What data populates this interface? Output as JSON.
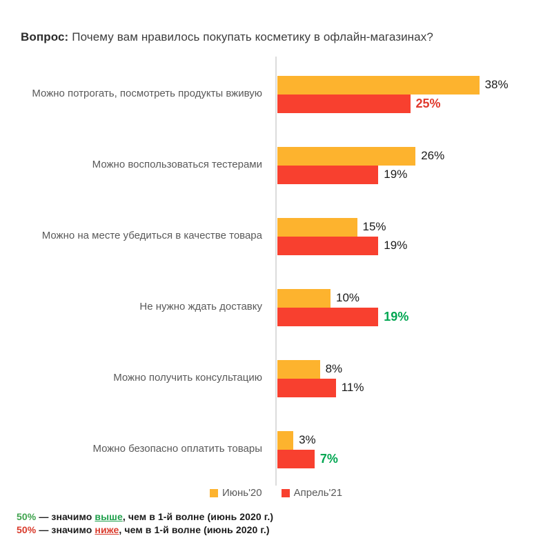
{
  "title": {
    "prefix": "Вопрос:",
    "text": "Почему вам нравилось покупать косметику в офлайн-магазинах?"
  },
  "chart_data": {
    "type": "bar",
    "orientation": "horizontal",
    "title": "Почему вам нравилось покупать косметику в офлайн-магазинах?",
    "xlabel": "",
    "ylabel": "",
    "xlim": [
      0,
      40
    ],
    "grid": false,
    "legend_position": "bottom-center",
    "categories": [
      "Можно потрогать, посмотреть продукты вживую",
      "Можно воспользоваться тестерами",
      "Можно на месте убедиться в качестве товара",
      "Не нужно ждать доставку",
      "Можно получить консультацию",
      "Можно безопасно оплатить товары"
    ],
    "series": [
      {
        "name": "Июнь'20",
        "color": "#fdb32e",
        "values": [
          38,
          26,
          15,
          10,
          8,
          3
        ]
      },
      {
        "name": "Апрель'21",
        "color": "#f8402f",
        "values": [
          25,
          19,
          19,
          19,
          11,
          7
        ]
      }
    ],
    "rows": [
      {
        "category": "Можно потрогать, посмотреть продукты вживую",
        "values": [
          {
            "pct": 38,
            "label": "38%",
            "sig": "none"
          },
          {
            "pct": 25,
            "label": "25%",
            "sig": "lower"
          }
        ]
      },
      {
        "category": "Можно воспользоваться тестерами",
        "values": [
          {
            "pct": 26,
            "label": "26%",
            "sig": "none"
          },
          {
            "pct": 19,
            "label": "19%",
            "sig": "none"
          }
        ]
      },
      {
        "category": "Можно на месте убедиться в качестве товара",
        "values": [
          {
            "pct": 15,
            "label": "15%",
            "sig": "none"
          },
          {
            "pct": 19,
            "label": "19%",
            "sig": "none"
          }
        ]
      },
      {
        "category": "Не нужно ждать доставку",
        "values": [
          {
            "pct": 10,
            "label": "10%",
            "sig": "none"
          },
          {
            "pct": 19,
            "label": "19%",
            "sig": "higher"
          }
        ]
      },
      {
        "category": "Можно получить консультацию",
        "values": [
          {
            "pct": 8,
            "label": "8%",
            "sig": "none"
          },
          {
            "pct": 11,
            "label": "11%",
            "sig": "none"
          }
        ]
      },
      {
        "category": "Можно безопасно оплатить товары",
        "values": [
          {
            "pct": 3,
            "label": "3%",
            "sig": "none"
          },
          {
            "pct": 7,
            "label": "7%",
            "sig": "higher"
          }
        ]
      }
    ],
    "sig_colors": {
      "none": "#1a1a1a",
      "higher": "#00a651",
      "lower": "#e0392d"
    }
  },
  "legend": {
    "items": [
      {
        "label": "Июнь'20",
        "color": "#fdb32e"
      },
      {
        "label": "Апрель'21",
        "color": "#f8402f"
      }
    ]
  },
  "footnotes": [
    {
      "value": "50%",
      "joiner": " — значимо ",
      "keyword": "выше",
      "rest": ", чем в 1-й волне (июнь 2020 г.)"
    },
    {
      "value": "50%",
      "joiner": " — значимо ",
      "keyword": "ниже",
      "rest": ", чем в 1-й волне (июнь 2020 г.)"
    }
  ],
  "colors": {
    "june_bar": "#fdb32e",
    "april_bar": "#f8402f",
    "axis_line": "#dcdcdc",
    "category_text": "#595959",
    "value_text": "#1a1a1a",
    "sig_higher_green": "#00a651",
    "sig_lower_red": "#e0392d"
  }
}
